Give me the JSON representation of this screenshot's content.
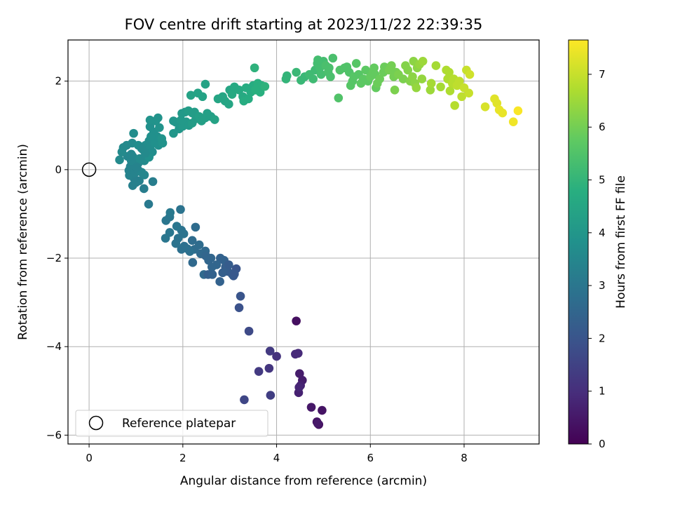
{
  "chart_data": {
    "type": "scatter",
    "title": "FOV centre drift starting at 2023/11/22 22:39:35",
    "xlabel": "Angular distance from reference (arcmin)",
    "ylabel": "Rotation from reference (arcmin)",
    "xlim": [
      -0.45,
      9.6
    ],
    "ylim": [
      -6.2,
      2.93
    ],
    "xticks": [
      0,
      2,
      4,
      6,
      8
    ],
    "yticks": [
      -6,
      -4,
      -2,
      0,
      2
    ],
    "xtick_labels": [
      "0",
      "2",
      "4",
      "6",
      "8"
    ],
    "ytick_labels": [
      "−6",
      "−4",
      "−2",
      "0",
      "2"
    ],
    "grid": true,
    "legend": {
      "position": "lower-left",
      "entries": [
        "Reference platepar"
      ]
    },
    "reference_point": {
      "x": 0,
      "y": 0
    },
    "colorbar": {
      "label": "Hours from first FF file",
      "colormap": "viridis",
      "range": [
        0,
        7.65
      ],
      "ticks": [
        0,
        1,
        2,
        3,
        4,
        5,
        6,
        7
      ],
      "tick_labels": [
        "0",
        "1",
        "2",
        "3",
        "4",
        "5",
        "6",
        "7"
      ]
    },
    "series": [
      {
        "points": [
          [
            4.42,
            -3.42,
            0.3
          ],
          [
            4.9,
            -5.76,
            0.3
          ],
          [
            4.86,
            -5.7,
            0.4
          ],
          [
            4.97,
            -5.44,
            0.4
          ],
          [
            4.74,
            -5.37,
            0.5
          ],
          [
            4.88,
            -5.74,
            0.5
          ],
          [
            4.55,
            -4.76,
            0.6
          ],
          [
            4.49,
            -4.61,
            0.6
          ],
          [
            4.47,
            -5.04,
            0.7
          ],
          [
            4.51,
            -4.88,
            0.7
          ],
          [
            4.48,
            -4.92,
            0.8
          ],
          [
            4.4,
            -4.17,
            0.9
          ],
          [
            4.46,
            -4.15,
            0.9
          ],
          [
            4.0,
            -4.22,
            1.1
          ],
          [
            3.84,
            -4.49,
            1.2
          ],
          [
            3.62,
            -4.56,
            1.3
          ],
          [
            3.86,
            -4.1,
            1.3
          ],
          [
            3.87,
            -5.1,
            1.4
          ],
          [
            3.31,
            -5.2,
            1.6
          ],
          [
            3.41,
            -3.65,
            1.7
          ],
          [
            3.2,
            -3.12,
            1.9
          ],
          [
            3.23,
            -2.86,
            2.0
          ],
          [
            3.14,
            -2.24,
            2.0
          ],
          [
            3.08,
            -2.4,
            2.1
          ],
          [
            3.05,
            -2.36,
            2.2
          ],
          [
            2.96,
            -2.3,
            2.2
          ],
          [
            2.91,
            -2.2,
            2.3
          ],
          [
            2.85,
            -2.33,
            2.3
          ],
          [
            2.88,
            -2.05,
            2.4
          ],
          [
            2.79,
            -2.53,
            2.4
          ],
          [
            2.8,
            -2.0,
            2.4
          ],
          [
            2.72,
            -2.15,
            2.5
          ],
          [
            2.62,
            -2.2,
            2.5
          ],
          [
            2.55,
            -2.05,
            2.5
          ],
          [
            2.45,
            -2.37,
            2.6
          ],
          [
            2.48,
            -1.84,
            2.6
          ],
          [
            2.38,
            -1.9,
            2.6
          ],
          [
            2.35,
            -1.7,
            2.7
          ],
          [
            2.25,
            -1.8,
            2.7
          ],
          [
            2.2,
            -1.6,
            2.7
          ],
          [
            2.15,
            -1.85,
            2.8
          ],
          [
            2.1,
            -1.79,
            2.8
          ],
          [
            2.03,
            -1.73,
            2.8
          ],
          [
            1.97,
            -1.8,
            2.8
          ],
          [
            1.9,
            -1.55,
            2.9
          ],
          [
            1.85,
            -1.67,
            2.9
          ],
          [
            1.97,
            -1.37,
            2.9
          ],
          [
            2.02,
            -1.45,
            2.9
          ],
          [
            1.95,
            -0.9,
            2.9
          ],
          [
            1.87,
            -1.28,
            3.0
          ],
          [
            1.72,
            -1.42,
            3.0
          ],
          [
            1.63,
            -1.55,
            3.0
          ],
          [
            1.64,
            -1.15,
            3.0
          ],
          [
            1.72,
            -1.07,
            3.0
          ],
          [
            1.73,
            -0.97,
            3.1
          ],
          [
            2.54,
            -2.37,
            2.3
          ],
          [
            2.63,
            -2.37,
            2.4
          ],
          [
            2.21,
            -2.1,
            2.6
          ],
          [
            2.27,
            -1.3,
            2.7
          ],
          [
            2.49,
            -1.95,
            2.5
          ],
          [
            2.6,
            -2.0,
            2.5
          ],
          [
            2.98,
            -2.15,
            2.2
          ],
          [
            3.1,
            -2.36,
            2.1
          ],
          [
            1.27,
            -0.78,
            3.1
          ],
          [
            1.36,
            -0.27,
            3.2
          ],
          [
            1.17,
            -0.43,
            3.2
          ],
          [
            1.07,
            -0.25,
            3.3
          ],
          [
            0.93,
            -0.36,
            3.3
          ],
          [
            1.0,
            -0.29,
            3.3
          ],
          [
            0.96,
            -0.2,
            3.3
          ],
          [
            0.86,
            -0.13,
            3.4
          ],
          [
            0.85,
            -0.02,
            3.4
          ],
          [
            0.88,
            0.07,
            3.4
          ],
          [
            0.95,
            0.1,
            3.4
          ],
          [
            0.98,
            -0.07,
            3.4
          ],
          [
            1.04,
            0.0,
            3.4
          ],
          [
            1.12,
            -0.06,
            3.5
          ],
          [
            1.18,
            -0.12,
            3.5
          ],
          [
            1.05,
            0.15,
            3.5
          ],
          [
            0.9,
            0.2,
            3.5
          ],
          [
            0.82,
            0.3,
            3.5
          ],
          [
            0.9,
            0.35,
            3.5
          ],
          [
            0.93,
            0.3,
            3.5
          ],
          [
            1.08,
            0.25,
            3.6
          ],
          [
            1.18,
            0.2,
            3.6
          ],
          [
            0.73,
            0.5,
            3.6
          ],
          [
            0.8,
            0.55,
            3.6
          ],
          [
            0.7,
            0.4,
            3.6
          ],
          [
            0.65,
            0.22,
            3.6
          ],
          [
            0.92,
            0.6,
            3.6
          ],
          [
            0.95,
            0.82,
            3.7
          ],
          [
            1.05,
            0.55,
            3.7
          ],
          [
            1.15,
            0.45,
            3.7
          ],
          [
            1.2,
            0.55,
            3.7
          ],
          [
            1.28,
            0.65,
            3.7
          ],
          [
            1.3,
            0.5,
            3.7
          ],
          [
            1.35,
            0.4,
            3.7
          ],
          [
            1.28,
            0.28,
            3.8
          ],
          [
            1.4,
            0.6,
            3.8
          ],
          [
            1.45,
            0.75,
            3.8
          ],
          [
            1.38,
            0.85,
            3.8
          ],
          [
            1.3,
            0.97,
            3.8
          ],
          [
            1.48,
            0.55,
            3.8
          ],
          [
            1.55,
            0.7,
            3.9
          ],
          [
            1.57,
            0.6,
            3.9
          ],
          [
            1.5,
            0.95,
            3.9
          ],
          [
            1.42,
            1.1,
            3.9
          ],
          [
            1.47,
            1.17,
            3.9
          ],
          [
            1.3,
            1.12,
            3.9
          ],
          [
            1.32,
            0.75,
            3.8
          ],
          [
            1.12,
            0.48,
            3.6
          ],
          [
            1.02,
            0.05,
            3.4
          ],
          [
            1.2,
            0.37,
            3.6
          ],
          [
            1.8,
            0.82,
            4.0
          ],
          [
            1.8,
            1.1,
            4.0
          ],
          [
            1.85,
            1.07,
            4.0
          ],
          [
            1.92,
            0.92,
            4.0
          ],
          [
            2.0,
            0.98,
            4.1
          ],
          [
            1.96,
            1.12,
            4.1
          ],
          [
            2.07,
            1.08,
            4.1
          ],
          [
            2.13,
            1.0,
            4.1
          ],
          [
            1.98,
            1.27,
            4.1
          ],
          [
            2.05,
            1.3,
            4.1
          ],
          [
            2.12,
            1.33,
            4.2
          ],
          [
            2.2,
            1.28,
            4.2
          ],
          [
            2.25,
            1.3,
            4.2
          ],
          [
            2.28,
            1.15,
            4.2
          ],
          [
            2.2,
            1.05,
            4.2
          ],
          [
            2.35,
            1.2,
            4.3
          ],
          [
            2.4,
            1.1,
            4.3
          ],
          [
            2.48,
            1.17,
            4.3
          ],
          [
            2.52,
            1.27,
            4.3
          ],
          [
            2.6,
            1.2,
            4.3
          ],
          [
            2.68,
            1.13,
            4.4
          ],
          [
            2.17,
            1.68,
            4.4
          ],
          [
            2.32,
            1.73,
            4.4
          ],
          [
            2.42,
            1.65,
            4.4
          ],
          [
            2.48,
            1.93,
            4.4
          ],
          [
            2.75,
            1.6,
            4.5
          ],
          [
            2.85,
            1.65,
            4.5
          ],
          [
            2.9,
            1.55,
            4.5
          ],
          [
            2.98,
            1.48,
            4.5
          ],
          [
            3.0,
            1.8,
            4.5
          ],
          [
            3.1,
            1.87,
            4.6
          ],
          [
            3.2,
            1.8,
            4.6
          ],
          [
            3.05,
            1.7,
            4.6
          ],
          [
            3.28,
            1.65,
            4.6
          ],
          [
            3.3,
            1.55,
            4.7
          ],
          [
            3.4,
            1.6,
            4.7
          ],
          [
            3.45,
            1.75,
            4.7
          ],
          [
            3.5,
            1.9,
            4.7
          ],
          [
            3.35,
            1.85,
            4.7
          ],
          [
            3.6,
            1.95,
            4.8
          ],
          [
            3.68,
            1.9,
            4.8
          ],
          [
            3.65,
            1.75,
            4.8
          ],
          [
            3.55,
            1.8,
            4.8
          ],
          [
            3.75,
            1.88,
            4.9
          ],
          [
            3.53,
            2.3,
            4.9
          ],
          [
            4.2,
            2.05,
            5.0
          ],
          [
            4.22,
            2.12,
            5.0
          ],
          [
            4.42,
            2.2,
            5.1
          ],
          [
            4.6,
            2.1,
            5.1
          ],
          [
            4.52,
            2.02,
            5.1
          ],
          [
            4.7,
            2.15,
            5.2
          ],
          [
            4.78,
            2.05,
            5.2
          ],
          [
            4.82,
            2.25,
            5.2
          ],
          [
            4.87,
            2.4,
            5.3
          ],
          [
            4.92,
            2.3,
            5.3
          ],
          [
            4.95,
            2.15,
            5.3
          ],
          [
            5.0,
            2.45,
            5.3
          ],
          [
            5.05,
            2.35,
            5.4
          ],
          [
            5.1,
            2.2,
            5.4
          ],
          [
            5.12,
            2.3,
            5.4
          ],
          [
            4.88,
            2.48,
            5.3
          ],
          [
            5.2,
            2.52,
            5.4
          ],
          [
            5.15,
            2.1,
            5.4
          ],
          [
            5.32,
            1.62,
            5.5
          ],
          [
            5.35,
            2.25,
            5.5
          ],
          [
            5.45,
            2.3,
            5.5
          ],
          [
            5.55,
            2.2,
            5.5
          ],
          [
            5.5,
            2.32,
            5.5
          ],
          [
            5.58,
            1.9,
            5.6
          ],
          [
            5.62,
            2.0,
            5.6
          ],
          [
            5.65,
            2.1,
            5.6
          ],
          [
            5.7,
            2.4,
            5.6
          ],
          [
            5.75,
            2.15,
            5.6
          ],
          [
            5.8,
            1.95,
            5.7
          ],
          [
            5.85,
            2.05,
            5.7
          ],
          [
            5.9,
            2.25,
            5.7
          ],
          [
            5.95,
            2.0,
            5.7
          ],
          [
            6.0,
            2.1,
            5.8
          ],
          [
            6.05,
            2.2,
            5.8
          ],
          [
            6.08,
            2.3,
            5.8
          ],
          [
            6.1,
            2.15,
            5.8
          ],
          [
            6.12,
            1.85,
            5.8
          ],
          [
            6.15,
            1.95,
            5.9
          ],
          [
            6.2,
            2.05,
            5.9
          ],
          [
            6.28,
            2.2,
            5.9
          ],
          [
            6.3,
            2.32,
            5.9
          ],
          [
            6.4,
            2.25,
            6.0
          ],
          [
            6.45,
            2.35,
            6.0
          ],
          [
            6.5,
            2.1,
            6.0
          ],
          [
            6.55,
            2.2,
            6.0
          ],
          [
            6.52,
            1.8,
            6.1
          ],
          [
            6.6,
            2.15,
            6.1
          ],
          [
            6.7,
            2.05,
            6.1
          ],
          [
            6.75,
            2.35,
            6.2
          ],
          [
            6.8,
            2.25,
            6.2
          ],
          [
            6.85,
            2.0,
            6.2
          ],
          [
            6.9,
            2.1,
            6.3
          ],
          [
            6.95,
            1.95,
            6.3
          ],
          [
            7.0,
            2.3,
            6.3
          ],
          [
            6.92,
            2.45,
            6.3
          ],
          [
            6.98,
            1.85,
            6.4
          ],
          [
            7.05,
            2.38,
            6.4
          ],
          [
            7.1,
            2.05,
            6.4
          ],
          [
            7.12,
            2.45,
            6.5
          ],
          [
            7.28,
            1.8,
            6.5
          ],
          [
            7.3,
            1.95,
            6.6
          ],
          [
            7.4,
            2.35,
            6.6
          ],
          [
            7.5,
            1.87,
            6.6
          ],
          [
            7.62,
            2.25,
            6.7
          ],
          [
            7.65,
            2.05,
            6.7
          ],
          [
            7.68,
            2.2,
            6.7
          ],
          [
            7.7,
            1.78,
            6.7
          ],
          [
            7.75,
            1.95,
            6.8
          ],
          [
            7.8,
            1.45,
            6.8
          ],
          [
            7.78,
            2.05,
            6.8
          ],
          [
            7.85,
            1.9,
            6.9
          ],
          [
            7.9,
            2.0,
            6.9
          ],
          [
            7.95,
            1.65,
            6.9
          ],
          [
            8.0,
            1.85,
            7.0
          ],
          [
            8.05,
            2.25,
            7.0
          ],
          [
            8.1,
            1.73,
            7.0
          ],
          [
            8.12,
            2.15,
            7.1
          ],
          [
            8.45,
            1.42,
            7.2
          ],
          [
            8.65,
            1.6,
            7.3
          ],
          [
            8.7,
            1.5,
            7.3
          ],
          [
            8.75,
            1.35,
            7.4
          ],
          [
            8.82,
            1.28,
            7.4
          ],
          [
            9.05,
            1.08,
            7.5
          ],
          [
            9.15,
            1.33,
            7.6
          ]
        ]
      }
    ]
  }
}
